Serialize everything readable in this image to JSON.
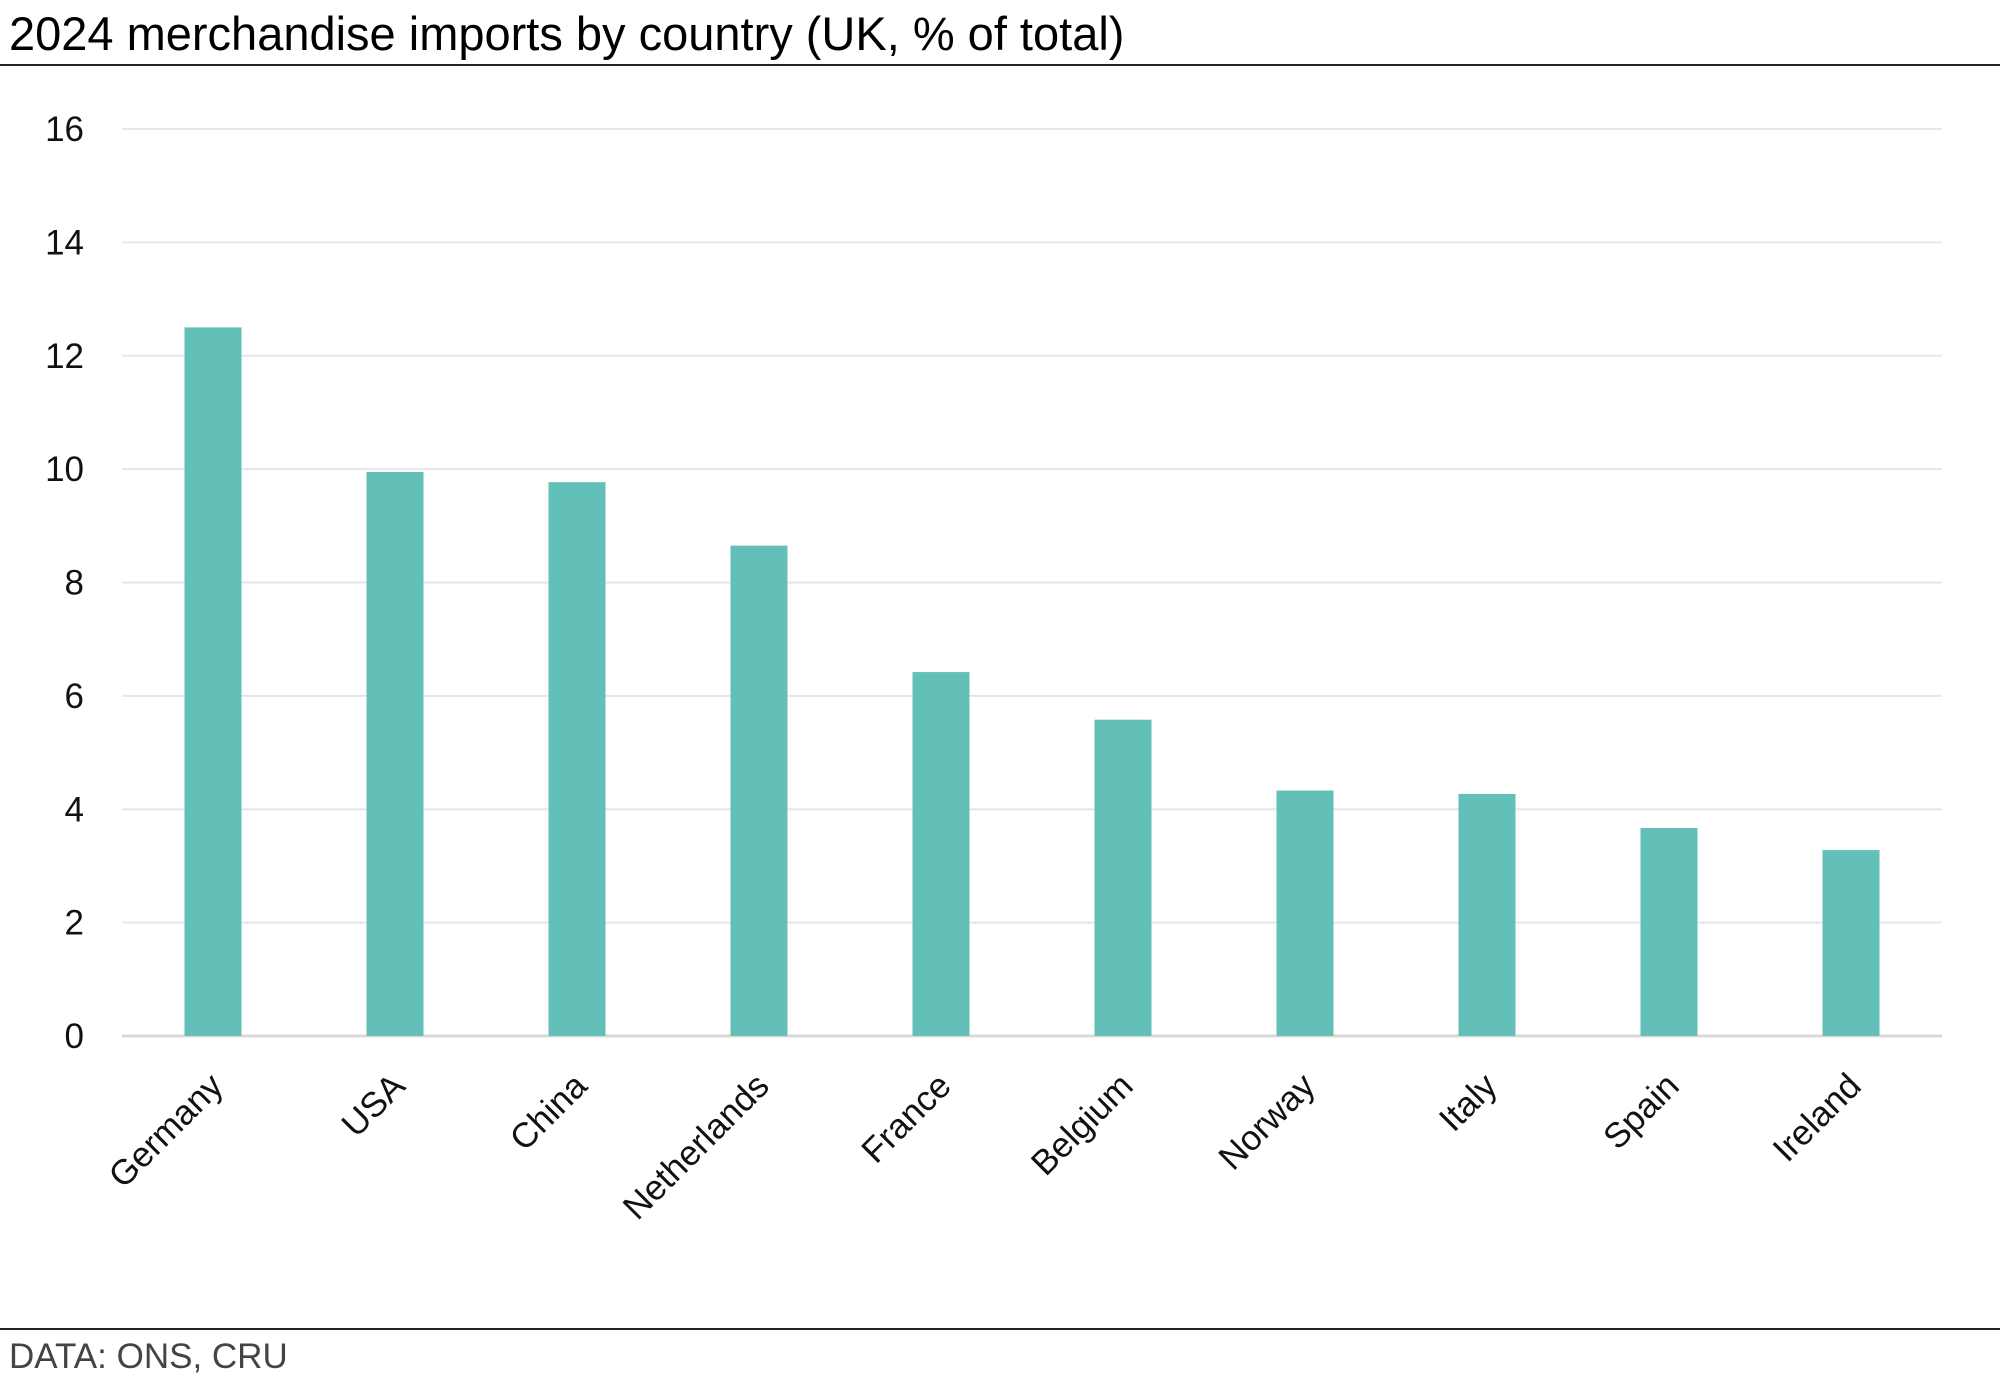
{
  "chart_data": {
    "type": "bar",
    "title": "2024 merchandise imports by country (UK, % of total)",
    "source": "DATA: ONS, CRU",
    "categories": [
      "Germany",
      "USA",
      "China",
      "Netherlands",
      "France",
      "Belgium",
      "Norway",
      "Italy",
      "Spain",
      "Ireland"
    ],
    "values": [
      12.5,
      9.95,
      9.77,
      8.65,
      6.42,
      5.58,
      4.33,
      4.27,
      3.67,
      3.28
    ],
    "ylim": [
      0,
      16
    ],
    "yticks": [
      "0",
      "2",
      "4",
      "6",
      "8",
      "10",
      "12",
      "14",
      "16"
    ],
    "grid": true,
    "xlabel": "",
    "ylabel": "",
    "colors": {
      "bar": "#63c0b9",
      "grid": "#e6e6e6",
      "axis": "#d9d9d9"
    }
  }
}
